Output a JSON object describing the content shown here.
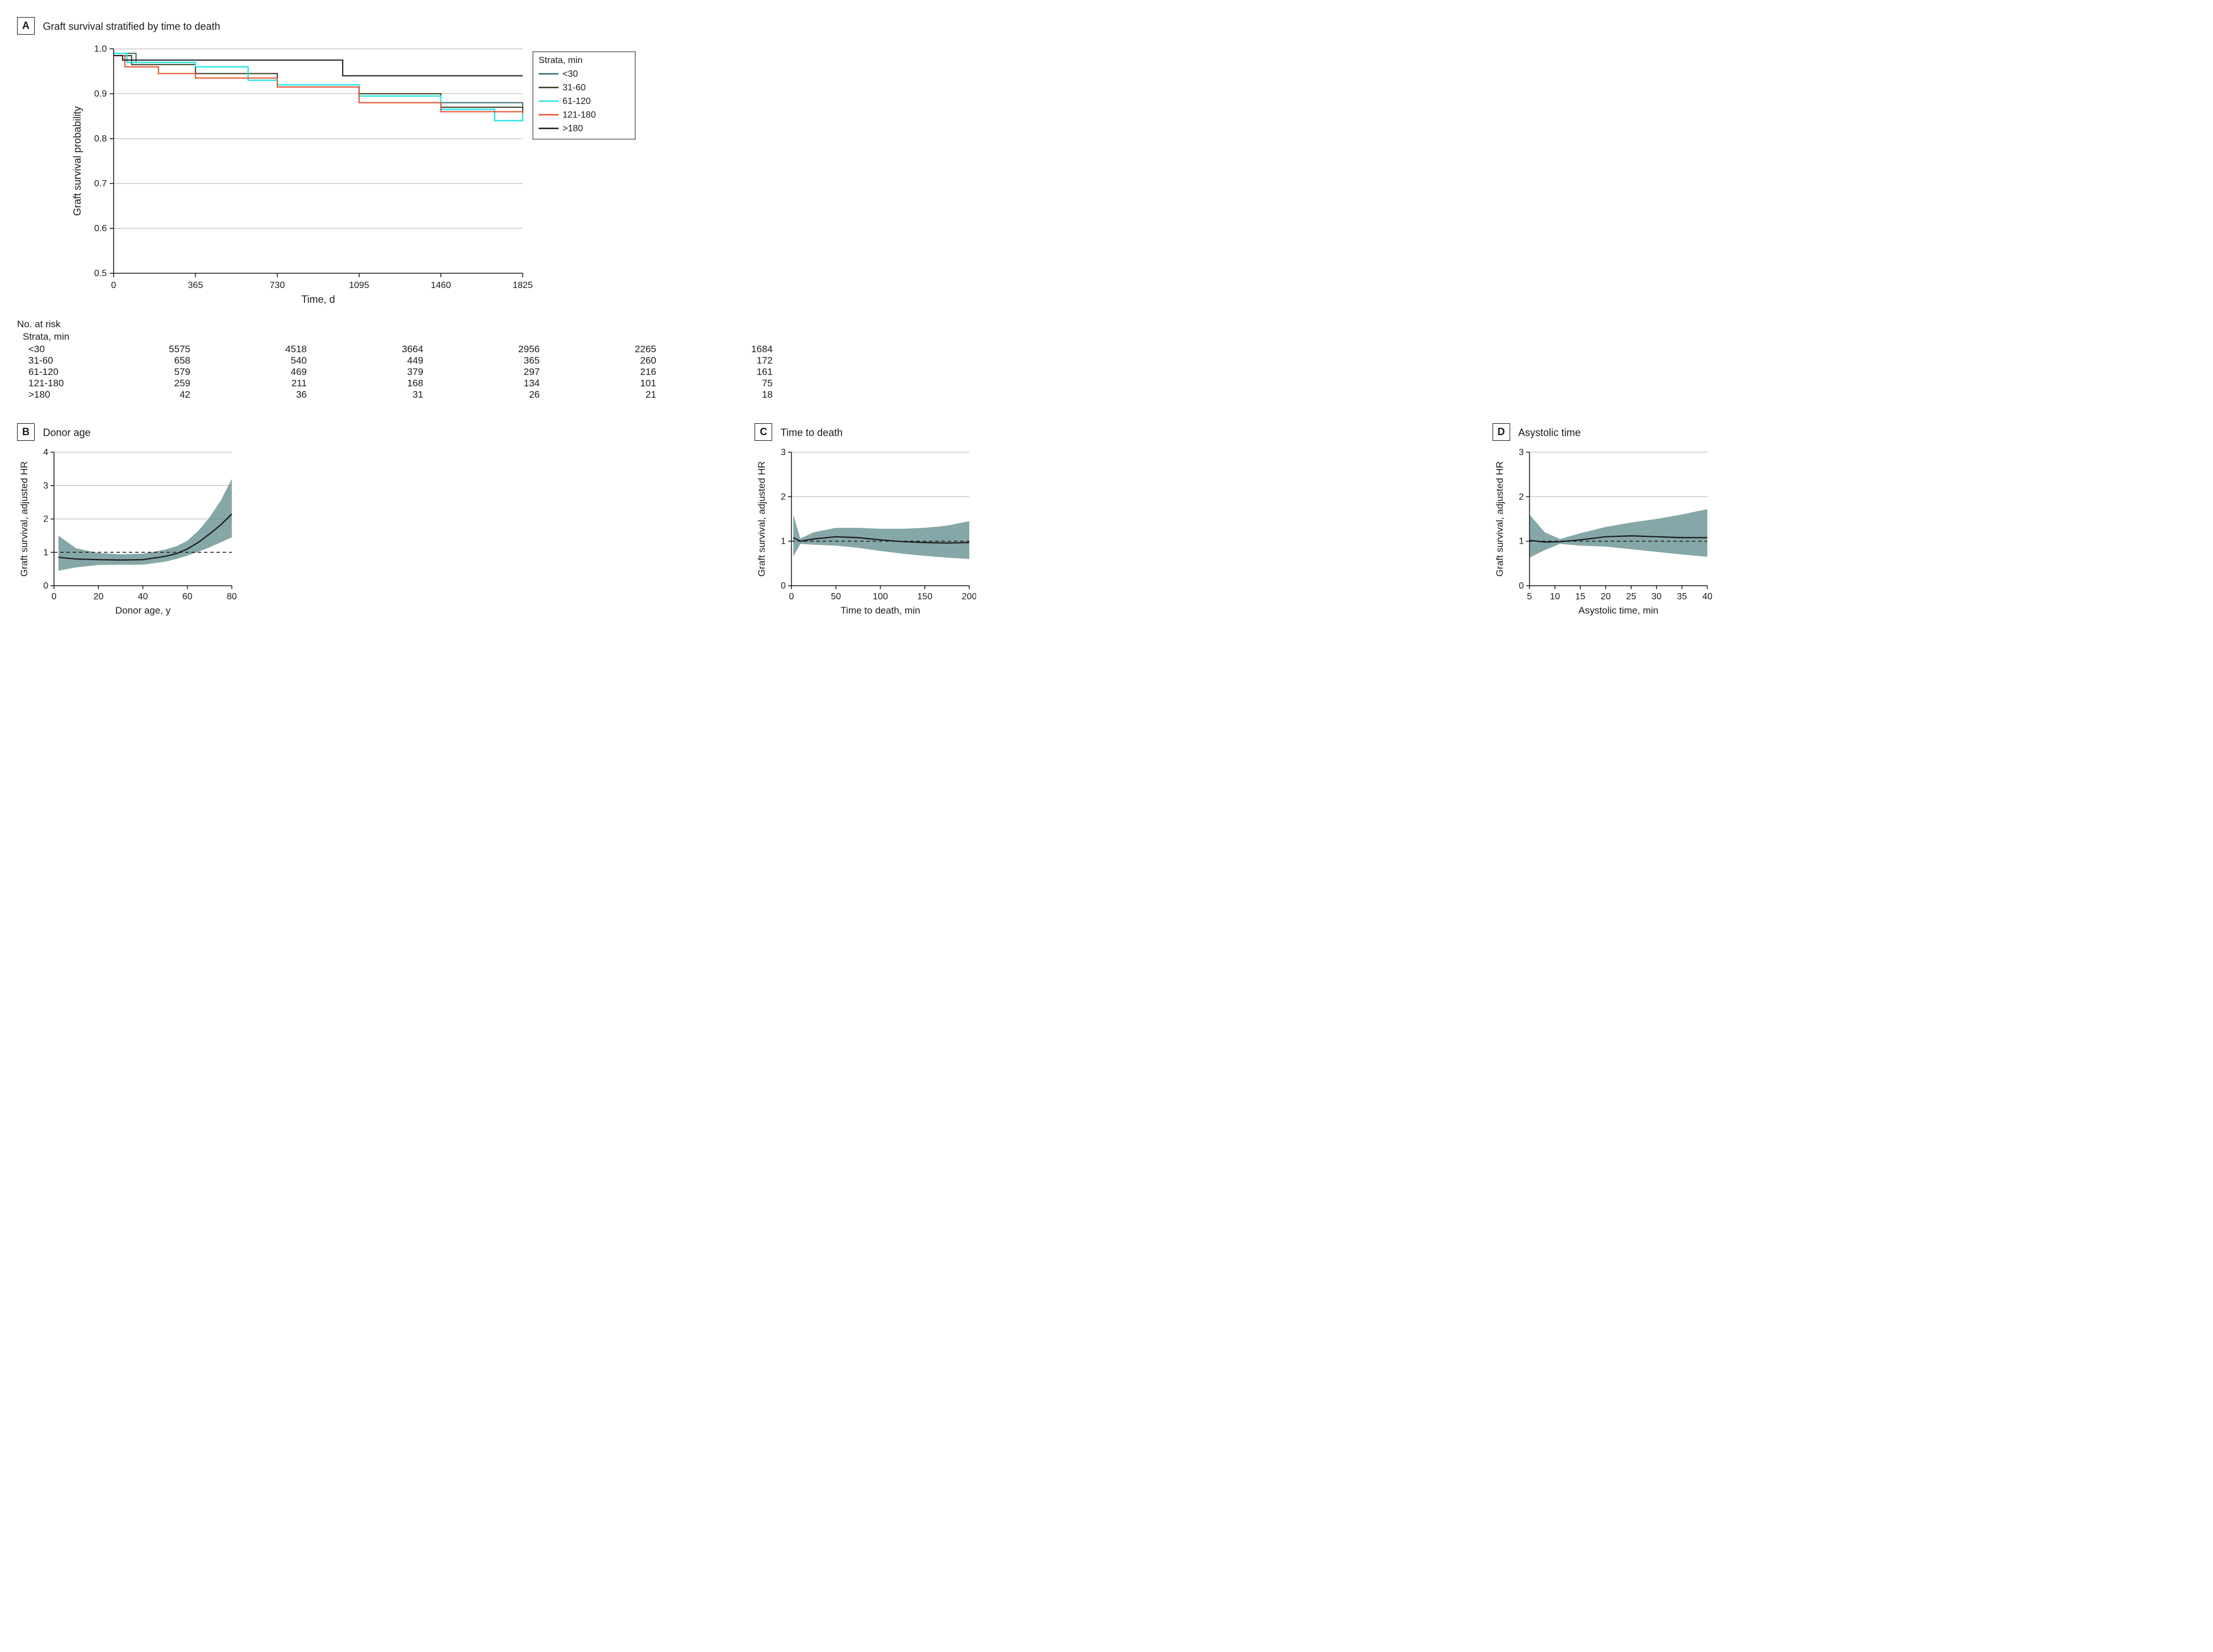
{
  "panelA": {
    "label": "A",
    "title": "Graft survival stratified by time to death",
    "xlabel": "Time, d",
    "ylabel": "Graft survival probability",
    "xlim": [
      0,
      1825
    ],
    "ylim": [
      0.5,
      1.0
    ],
    "xticks": [
      0,
      365,
      730,
      1095,
      1460,
      1825
    ],
    "yticks": [
      0.5,
      0.6,
      0.7,
      0.8,
      0.9,
      1.0
    ],
    "font_size_axis": 16,
    "font_size_label": 18,
    "grid_color": "#b0b0b0",
    "axis_color": "#1a1a1a",
    "background_color": "#ffffff",
    "legend_title": "Strata, min",
    "legend_font_size": 16,
    "strata": [
      {
        "name": "<30",
        "color": "#3a6b6f",
        "line_width": 2,
        "x": [
          0,
          100,
          365,
          730,
          1095,
          1460,
          1825
        ],
        "y": [
          0.99,
          0.97,
          0.945,
          0.92,
          0.9,
          0.88,
          0.86
        ]
      },
      {
        "name": "31-60",
        "color": "#3a3a1f",
        "line_width": 2,
        "x": [
          0,
          80,
          365,
          730,
          1095,
          1460,
          1825
        ],
        "y": [
          0.985,
          0.965,
          0.945,
          0.92,
          0.9,
          0.87,
          0.86
        ]
      },
      {
        "name": "61-120",
        "color": "#2fe5e5",
        "line_width": 2.5,
        "x": [
          0,
          60,
          365,
          600,
          730,
          1095,
          1460,
          1700,
          1825
        ],
        "y": [
          0.99,
          0.97,
          0.96,
          0.93,
          0.92,
          0.895,
          0.865,
          0.84,
          0.855
        ]
      },
      {
        "name": "121-180",
        "color": "#e84c2b",
        "line_width": 2,
        "x": [
          0,
          50,
          200,
          365,
          730,
          1095,
          1460,
          1825
        ],
        "y": [
          0.985,
          0.96,
          0.945,
          0.935,
          0.915,
          0.88,
          0.86,
          0.855
        ]
      },
      {
        "name": ">180",
        "color": "#1a1a1a",
        "line_width": 2,
        "x": [
          0,
          40,
          1020,
          1022,
          1825
        ],
        "y": [
          0.985,
          0.975,
          0.975,
          0.94,
          0.94
        ]
      }
    ],
    "risk_table": {
      "header": "No. at risk",
      "subheader": "Strata, min",
      "rows": [
        {
          "label": "<30",
          "values": [
            5575,
            4518,
            3664,
            2956,
            2265,
            1684
          ]
        },
        {
          "label": "31-60",
          "values": [
            658,
            540,
            449,
            365,
            260,
            172
          ]
        },
        {
          "label": "61-120",
          "values": [
            579,
            469,
            379,
            297,
            216,
            161
          ]
        },
        {
          "label": "121-180",
          "values": [
            259,
            211,
            168,
            134,
            101,
            75
          ]
        },
        {
          "label": ">180",
          "values": [
            42,
            36,
            31,
            26,
            21,
            18
          ]
        }
      ]
    }
  },
  "bottom_common": {
    "ylabel": "Graft survival, adjusted HR",
    "grid_color": "#b0b0b0",
    "axis_color": "#1a1a1a",
    "line_color": "#1a1a1a",
    "band_color": "#5d8a8a",
    "band_opacity": 0.75,
    "ref_line_dash": "6,5",
    "line_width": 2.2,
    "font_size_axis": 16,
    "font_size_label": 17
  },
  "panelB": {
    "label": "B",
    "title": "Donor age",
    "xlabel": "Donor age, y",
    "xlim": [
      0,
      80
    ],
    "ylim": [
      0,
      4
    ],
    "xticks": [
      0,
      20,
      40,
      60,
      80
    ],
    "yticks": [
      0,
      1,
      2,
      3,
      4
    ],
    "curve_x": [
      2,
      10,
      20,
      30,
      40,
      50,
      55,
      60,
      65,
      70,
      75,
      80
    ],
    "curve_mid": [
      0.85,
      0.8,
      0.78,
      0.77,
      0.78,
      0.88,
      0.96,
      1.1,
      1.3,
      1.55,
      1.82,
      2.15
    ],
    "curve_low": [
      0.45,
      0.55,
      0.62,
      0.63,
      0.63,
      0.72,
      0.8,
      0.9,
      1.02,
      1.15,
      1.3,
      1.45
    ],
    "curve_high": [
      1.5,
      1.12,
      0.98,
      0.94,
      0.96,
      1.08,
      1.18,
      1.35,
      1.65,
      2.05,
      2.55,
      3.2
    ]
  },
  "panelC": {
    "label": "C",
    "title": "Time to death",
    "xlabel": "Time to death, min",
    "xlim": [
      0,
      200
    ],
    "ylim": [
      0,
      3
    ],
    "xticks": [
      0,
      50,
      100,
      150,
      200
    ],
    "yticks": [
      0,
      1,
      2,
      3
    ],
    "curve_x": [
      2,
      10,
      25,
      50,
      75,
      100,
      125,
      150,
      175,
      200
    ],
    "curve_mid": [
      1.08,
      1.0,
      1.05,
      1.1,
      1.08,
      1.03,
      0.99,
      0.97,
      0.96,
      0.97
    ],
    "curve_low": [
      0.65,
      0.94,
      0.92,
      0.9,
      0.85,
      0.78,
      0.72,
      0.67,
      0.63,
      0.6
    ],
    "curve_high": [
      1.6,
      1.06,
      1.2,
      1.3,
      1.3,
      1.28,
      1.28,
      1.3,
      1.35,
      1.45
    ]
  },
  "panelD": {
    "label": "D",
    "title": "Asystolic time",
    "xlabel": "Asystolic time, min",
    "xlim": [
      5,
      40
    ],
    "ylim": [
      0,
      3
    ],
    "xticks": [
      5,
      10,
      15,
      20,
      25,
      30,
      35,
      40
    ],
    "yticks": [
      0,
      1,
      2,
      3
    ],
    "curve_x": [
      5,
      8,
      11,
      15,
      20,
      25,
      30,
      35,
      40
    ],
    "curve_mid": [
      1.02,
      0.98,
      0.99,
      1.03,
      1.1,
      1.12,
      1.1,
      1.08,
      1.08
    ],
    "curve_low": [
      0.63,
      0.8,
      0.94,
      0.9,
      0.88,
      0.82,
      0.76,
      0.7,
      0.65
    ],
    "curve_high": [
      1.6,
      1.2,
      1.05,
      1.18,
      1.32,
      1.42,
      1.5,
      1.6,
      1.72
    ]
  }
}
